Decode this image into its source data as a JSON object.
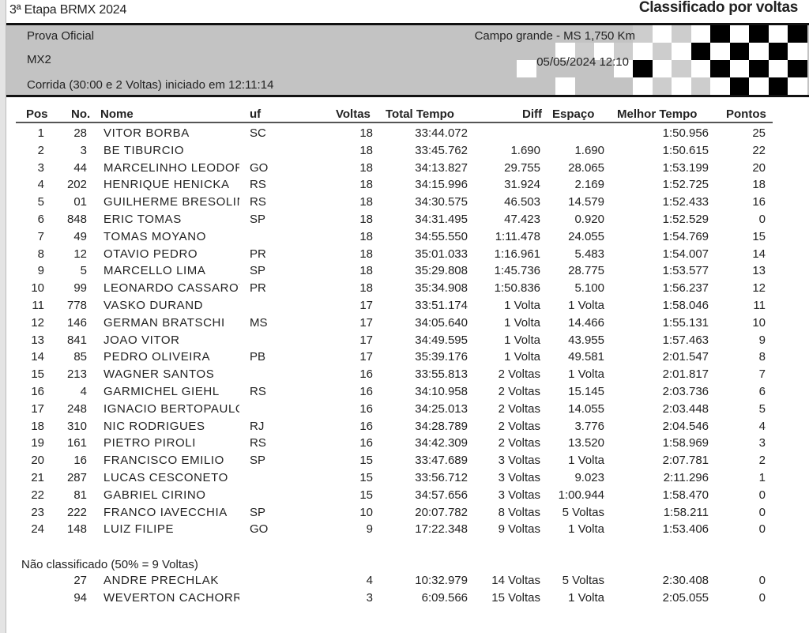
{
  "header": {
    "event_title": "3ª Etapa BRMX 2024",
    "report_title": "Classificado por voltas",
    "session_type": "Prova Oficial",
    "category": "MX2",
    "race_info": "Corrida (30:00 e 2 Voltas) iniciado em 12:11:14",
    "location": "Campo grande - MS 1,750 Km",
    "datetime": "05/05/2024 12:10"
  },
  "columns": {
    "pos": "Pos",
    "no": "No.",
    "name": "Nome",
    "uf": "uf",
    "laps": "Voltas",
    "total": "Total Tempo",
    "diff": "Diff",
    "gap": "Espaço",
    "best": "Melhor Tempo",
    "points": "Pontos"
  },
  "results": [
    [
      "1",
      "28",
      "VITOR BORBA",
      "SC",
      "18",
      "33:44.072",
      "",
      "",
      "1:50.956",
      "25"
    ],
    [
      "2",
      "3",
      "BE TIBURCIO",
      "",
      "18",
      "33:45.762",
      "1.690",
      "1.690",
      "1:50.615",
      "22"
    ],
    [
      "3",
      "44",
      "MARCELINHO LEODORI",
      "GO",
      "18",
      "34:13.827",
      "29.755",
      "28.065",
      "1:53.199",
      "20"
    ],
    [
      "4",
      "202",
      "HENRIQUE HENICKA",
      "RS",
      "18",
      "34:15.996",
      "31.924",
      "2.169",
      "1:52.725",
      "18"
    ],
    [
      "5",
      "01",
      "GUILHERME BRESOLIN",
      "RS",
      "18",
      "34:30.575",
      "46.503",
      "14.579",
      "1:52.433",
      "16"
    ],
    [
      "6",
      "848",
      "ERIC TOMAS",
      "SP",
      "18",
      "34:31.495",
      "47.423",
      "0.920",
      "1:52.529",
      "0"
    ],
    [
      "7",
      "49",
      "TOMAS MOYANO",
      "",
      "18",
      "34:55.550",
      "1:11.478",
      "24.055",
      "1:54.769",
      "15"
    ],
    [
      "8",
      "12",
      "OTAVIO PEDRO",
      "PR",
      "18",
      "35:01.033",
      "1:16.961",
      "5.483",
      "1:54.007",
      "14"
    ],
    [
      "9",
      "5",
      "MARCELLO LIMA",
      "SP",
      "18",
      "35:29.808",
      "1:45.736",
      "28.775",
      "1:53.577",
      "13"
    ],
    [
      "10",
      "99",
      "LEONARDO CASSAROTTI",
      "PR",
      "18",
      "35:34.908",
      "1:50.836",
      "5.100",
      "1:56.237",
      "12"
    ],
    [
      "11",
      "778",
      "VASKO DURAND",
      "",
      "17",
      "33:51.174",
      "1 Volta",
      "1 Volta",
      "1:58.046",
      "11"
    ],
    [
      "12",
      "146",
      "GERMAN BRATSCHI",
      "MS",
      "17",
      "34:05.640",
      "1 Volta",
      "14.466",
      "1:55.131",
      "10"
    ],
    [
      "13",
      "841",
      "JOAO VITOR",
      "",
      "17",
      "34:49.595",
      "1 Volta",
      "43.955",
      "1:57.463",
      "9"
    ],
    [
      "14",
      "85",
      "PEDRO OLIVEIRA",
      "PB",
      "17",
      "35:39.176",
      "1 Volta",
      "49.581",
      "2:01.547",
      "8"
    ],
    [
      "15",
      "213",
      "WAGNER SANTOS",
      "",
      "16",
      "33:55.813",
      "2 Voltas",
      "1 Volta",
      "2:01.817",
      "7"
    ],
    [
      "16",
      "4",
      "GARMICHEL GIEHL",
      "RS",
      "16",
      "34:10.958",
      "2 Voltas",
      "15.145",
      "2:03.736",
      "6"
    ],
    [
      "17",
      "248",
      "IGNACIO BERTOPAULOS",
      "",
      "16",
      "34:25.013",
      "2 Voltas",
      "14.055",
      "2:03.448",
      "5"
    ],
    [
      "18",
      "310",
      "NIC RODRIGUES",
      "RJ",
      "16",
      "34:28.789",
      "2 Voltas",
      "3.776",
      "2:04.546",
      "4"
    ],
    [
      "19",
      "161",
      "PIETRO PIROLI",
      "RS",
      "16",
      "34:42.309",
      "2 Voltas",
      "13.520",
      "1:58.969",
      "3"
    ],
    [
      "20",
      "16",
      "FRANCISCO EMILIO",
      "SP",
      "15",
      "33:47.689",
      "3 Voltas",
      "1 Volta",
      "2:07.781",
      "2"
    ],
    [
      "21",
      "287",
      "LUCAS CESCONETO",
      "",
      "15",
      "33:56.712",
      "3 Voltas",
      "9.023",
      "2:11.296",
      "1"
    ],
    [
      "22",
      "81",
      "GABRIEL CIRINO",
      "",
      "15",
      "34:57.656",
      "3 Voltas",
      "1:00.944",
      "1:58.470",
      "0"
    ],
    [
      "23",
      "222",
      "FRANCO IAVECCHIA",
      "SP",
      "10",
      "20:07.782",
      "8 Voltas",
      "5 Voltas",
      "1:58.211",
      "0"
    ],
    [
      "24",
      "148",
      "LUIZ FILIPE",
      "GO",
      "9",
      "17:22.348",
      "9 Voltas",
      "1 Volta",
      "1:53.406",
      "0"
    ]
  ],
  "not_classified": {
    "label": "Não classificado (50% = 9 Voltas)",
    "results": [
      [
        "",
        "27",
        "ANDRE PRECHLAK",
        "",
        "4",
        "10:32.979",
        "14 Voltas",
        "5 Voltas",
        "2:30.408",
        "0"
      ],
      [
        "",
        "94",
        "WEVERTON CACHORRA",
        "",
        "3",
        "6:09.566",
        "15 Voltas",
        "1 Volta",
        "2:05.055",
        "0"
      ]
    ]
  },
  "colors": {
    "band": "#c3c3c3",
    "flag_dark": "#000000",
    "flag_light": "#ffffff"
  },
  "icons": {
    "flag": "checkered-flag"
  }
}
